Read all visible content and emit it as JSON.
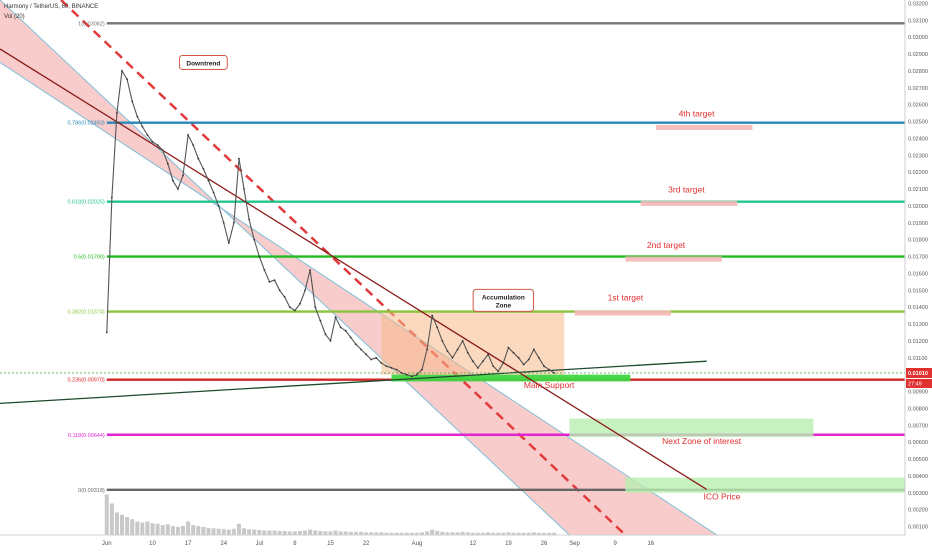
{
  "header": {
    "symbol_line": "Harmony / TetherUS, 60, BINANCE",
    "indicator_line": "Vol (20)"
  },
  "colors": {
    "channel_fill": "#f4a3a3",
    "channel_border": "#7fbfd6",
    "downtrend_dash": "#e03a3a",
    "trendline_dark_red": "#8b1a1a",
    "trendline_dark_green": "#1f4a2e",
    "accumulation_fill": "#f7b98a",
    "target_rect": "#f6b7b7",
    "zone_rect": "#b9eeb0",
    "support_rect": "#3fd63f",
    "label_red": "#e0302f",
    "price_badge": "#e0302f",
    "axis_text": "#555555"
  },
  "chart_data": {
    "type": "line",
    "title": "",
    "xlabel": "",
    "ylabel": "",
    "ylim": [
      0.0005,
      0.0322
    ],
    "y_ticks": [
      "0.03200",
      "0.03100",
      "0.03000",
      "0.02900",
      "0.02800",
      "0.02700",
      "0.02600",
      "0.02500",
      "0.02400",
      "0.02300",
      "0.02200",
      "0.02100",
      "0.02000",
      "0.01900",
      "0.01800",
      "0.01700",
      "0.01600",
      "0.01500",
      "0.01400",
      "0.01300",
      "0.01200",
      "0.01100",
      "0.01000",
      "0.00900",
      "0.00800",
      "0.00700",
      "0.00600",
      "0.00500",
      "0.00400",
      "0.00300",
      "0.00200",
      "0.00100"
    ],
    "x_ticks": [
      {
        "label": "Jun",
        "day": 0
      },
      {
        "label": "10",
        "day": 9
      },
      {
        "label": "17",
        "day": 16
      },
      {
        "label": "24",
        "day": 23
      },
      {
        "label": "Jul",
        "day": 30
      },
      {
        "label": "8",
        "day": 37
      },
      {
        "label": "15",
        "day": 44
      },
      {
        "label": "22",
        "day": 51
      },
      {
        "label": "Aug",
        "day": 61
      },
      {
        "label": "12",
        "day": 72
      },
      {
        "label": "19",
        "day": 79
      },
      {
        "label": "26",
        "day": 86
      },
      {
        "label": "Sep",
        "day": 92
      },
      {
        "label": "9",
        "day": 100
      },
      {
        "label": "16",
        "day": 107
      }
    ],
    "fib_levels": [
      {
        "label": "1(0.03082)",
        "value": 0.03082,
        "color": "#777777"
      },
      {
        "label": "0.786(0.02493)",
        "value": 0.02493,
        "color": "#2a88b8"
      },
      {
        "label": "0.618(0.02025)",
        "value": 0.02025,
        "color": "#22c48a"
      },
      {
        "label": "0.5(0.01700)",
        "value": 0.017,
        "color": "#22bb22"
      },
      {
        "label": "0.382(0.01374)",
        "value": 0.01374,
        "color": "#8ac43a"
      },
      {
        "label": "0.236(0.00970)",
        "value": 0.0097,
        "color": "#d42424"
      },
      {
        "label": "0.118(0.00644)",
        "value": 0.00644,
        "color": "#e025d0"
      },
      {
        "label": "0(0.00318)",
        "value": 0.00318,
        "color": "#666666"
      }
    ],
    "price_series": {
      "start_day": 0,
      "step_days": 1,
      "values": [
        0.0125,
        0.0205,
        0.0255,
        0.028,
        0.0275,
        0.0262,
        0.0253,
        0.0247,
        0.0242,
        0.0238,
        0.0236,
        0.0233,
        0.0225,
        0.0215,
        0.021,
        0.0218,
        0.0242,
        0.0236,
        0.0228,
        0.0222,
        0.0215,
        0.0208,
        0.02,
        0.019,
        0.0178,
        0.019,
        0.0228,
        0.021,
        0.0192,
        0.018,
        0.017,
        0.0162,
        0.0155,
        0.0156,
        0.015,
        0.0146,
        0.014,
        0.0138,
        0.0142,
        0.015,
        0.0162,
        0.014,
        0.0132,
        0.0124,
        0.012,
        0.0134,
        0.0128,
        0.0126,
        0.0122,
        0.0118,
        0.0115,
        0.0112,
        0.0109,
        0.011,
        0.0107,
        0.0105,
        0.0104,
        0.0103,
        0.0101,
        0.01,
        0.0099,
        0.01,
        0.0103,
        0.0115,
        0.0135,
        0.0128,
        0.012,
        0.0114,
        0.011,
        0.0115,
        0.012,
        0.0113,
        0.0108,
        0.0104,
        0.0108,
        0.0112,
        0.0105,
        0.0102,
        0.0107,
        0.0116,
        0.0113,
        0.011,
        0.0106,
        0.0109,
        0.0115,
        0.011,
        0.0105,
        0.0103,
        0.0101
      ]
    },
    "volume_series": {
      "values": [
        0.9,
        0.7,
        0.5,
        0.45,
        0.4,
        0.35,
        0.3,
        0.28,
        0.3,
        0.26,
        0.25,
        0.22,
        0.24,
        0.2,
        0.18,
        0.2,
        0.3,
        0.22,
        0.2,
        0.18,
        0.16,
        0.15,
        0.14,
        0.13,
        0.12,
        0.14,
        0.25,
        0.15,
        0.13,
        0.12,
        0.11,
        0.1,
        0.1,
        0.1,
        0.09,
        0.09,
        0.08,
        0.08,
        0.09,
        0.1,
        0.12,
        0.1,
        0.09,
        0.08,
        0.08,
        0.1,
        0.08,
        0.08,
        0.07,
        0.07,
        0.07,
        0.06,
        0.06,
        0.06,
        0.06,
        0.05,
        0.05,
        0.05,
        0.05,
        0.05,
        0.05,
        0.05,
        0.06,
        0.08,
        0.12,
        0.09,
        0.07,
        0.06,
        0.06,
        0.06,
        0.07,
        0.06,
        0.05,
        0.05,
        0.05,
        0.06,
        0.05,
        0.05,
        0.05,
        0.06,
        0.05,
        0.05,
        0.05,
        0.05,
        0.06,
        0.05,
        0.05,
        0.05,
        0.05
      ]
    },
    "downtrend_channel": {
      "upper": [
        {
          "day": -21,
          "value": 0.0322
        },
        {
          "day": 91,
          "value": 0.0005
        }
      ],
      "lower": [
        {
          "day": -21,
          "value": 0.0285
        },
        {
          "day": 120,
          "value": 0.0005
        }
      ],
      "midline": [
        {
          "day": -9,
          "value": 0.0322
        },
        {
          "day": 102,
          "value": 0.0005
        }
      ]
    },
    "trendlines": [
      {
        "name": "descending",
        "points": [
          {
            "day": -21,
            "value": 0.0293
          },
          {
            "day": 118,
            "value": 0.0032
          }
        ]
      },
      {
        "name": "ascending",
        "points": [
          {
            "day": -21,
            "value": 0.0083
          },
          {
            "day": 118,
            "value": 0.0108
          }
        ]
      }
    ],
    "accumulation_zone": {
      "day_start": 54,
      "day_end": 90,
      "low": 0.01,
      "high": 0.01374
    },
    "zones": [
      {
        "name": "target-1",
        "day_start": 92,
        "day_end": 111,
        "low": 0.0135,
        "high": 0.0138
      },
      {
        "name": "target-2",
        "day_start": 102,
        "day_end": 121,
        "low": 0.0167,
        "high": 0.017
      },
      {
        "name": "target-3",
        "day_start": 105,
        "day_end": 124,
        "low": 0.02,
        "high": 0.0203
      },
      {
        "name": "target-4",
        "day_start": 108,
        "day_end": 127,
        "low": 0.0245,
        "high": 0.0248
      },
      {
        "name": "main-support",
        "day_start": 56,
        "day_end": 103,
        "low": 0.0096,
        "high": 0.01
      },
      {
        "name": "next-zone",
        "day_start": 91,
        "day_end": 139,
        "low": 0.0063,
        "high": 0.0074
      },
      {
        "name": "ico-zone",
        "day_start": 102,
        "day_end": 157,
        "low": 0.003,
        "high": 0.0039
      }
    ],
    "annotations": [
      {
        "text": "Downtrend",
        "day": 19,
        "value": 0.0285,
        "color": "#222222",
        "boxed": true
      },
      {
        "text": "Accumulation Zone",
        "day": 78,
        "value": 0.0144,
        "color": "#222222",
        "boxed": true
      },
      {
        "text": "1st target",
        "day": 102,
        "value": 0.0144,
        "color": "#e0302f",
        "boxed": false
      },
      {
        "text": "2nd target",
        "day": 110,
        "value": 0.0175,
        "color": "#e0302f",
        "boxed": false
      },
      {
        "text": "3rd target",
        "day": 114,
        "value": 0.0208,
        "color": "#e0302f",
        "boxed": false
      },
      {
        "text": "4th target",
        "day": 116,
        "value": 0.0253,
        "color": "#e0302f",
        "boxed": false
      },
      {
        "text": "Main Support",
        "day": 87,
        "value": 0.0092,
        "color": "#e0302f",
        "boxed": false
      },
      {
        "text": "Next Zone of interest",
        "day": 117,
        "value": 0.0059,
        "color": "#e0302f",
        "boxed": false
      },
      {
        "text": "ICO Price",
        "day": 121,
        "value": 0.0026,
        "color": "#e0302f",
        "boxed": false
      }
    ],
    "current_price": {
      "label": "0.01010",
      "value": 0.0101,
      "timer": "27:49"
    },
    "price_line_value": 0.0101,
    "grid": false,
    "legend": "none"
  }
}
